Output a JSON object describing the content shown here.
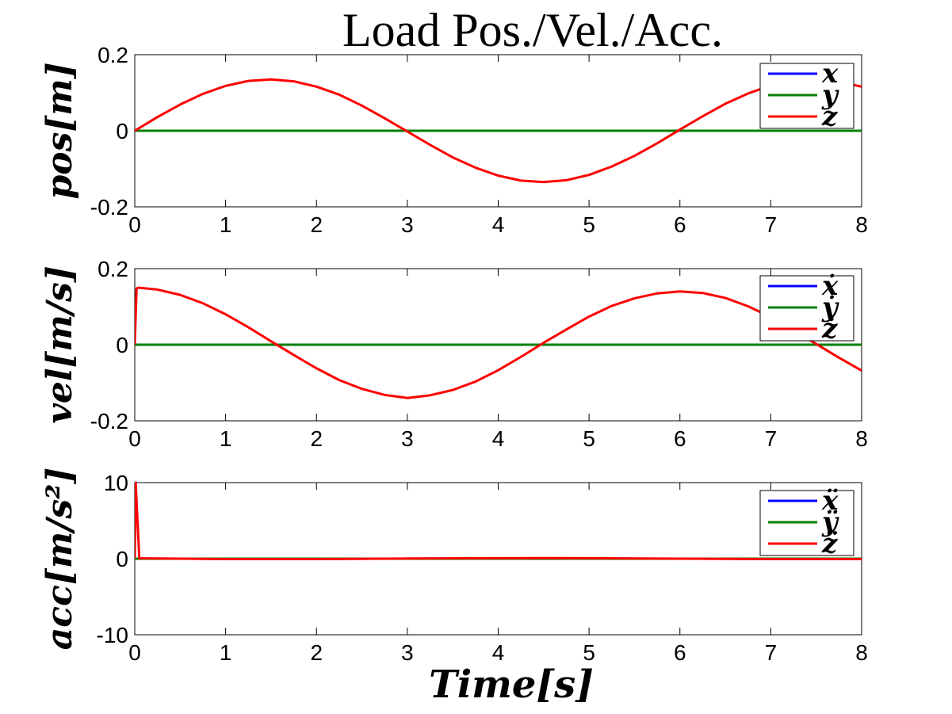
{
  "chart_data": {
    "type": "line",
    "title": "Load Pos./Vel./Acc.",
    "xlabel": "Time[s]",
    "xlim": [
      0,
      8
    ],
    "xticks": [
      "0",
      "1",
      "2",
      "3",
      "4",
      "5",
      "6",
      "7",
      "8"
    ],
    "colors": {
      "x": "#0000ff",
      "y": "#008000",
      "z": "#ff0000"
    },
    "panels": [
      {
        "ylabel": "pos[m]",
        "ylim": [
          -0.2,
          0.2
        ],
        "yticks": [
          "0.2",
          "0",
          "-0.2"
        ],
        "legend": [
          "x",
          "y",
          "z"
        ],
        "x": [
          0,
          0.25,
          0.5,
          0.75,
          1,
          1.25,
          1.5,
          1.75,
          2,
          2.25,
          2.5,
          2.75,
          3,
          3.25,
          3.5,
          3.75,
          4,
          4.25,
          4.5,
          4.75,
          5,
          5.25,
          5.5,
          5.75,
          6,
          6.25,
          6.5,
          6.75,
          7,
          7.25,
          7.5,
          7.75,
          8
        ],
        "series": [
          {
            "name": "x",
            "values": [
              0,
              0,
              0,
              0,
              0,
              0,
              0,
              0,
              0,
              0,
              0,
              0,
              0,
              0,
              0,
              0,
              0,
              0,
              0,
              0,
              0,
              0,
              0,
              0,
              0,
              0,
              0,
              0,
              0,
              0,
              0,
              0,
              0
            ]
          },
          {
            "name": "y",
            "values": [
              0,
              0,
              0,
              0,
              0,
              0,
              0,
              0,
              0,
              0,
              0,
              0,
              0,
              0,
              0,
              0,
              0,
              0,
              0,
              0,
              0,
              0,
              0,
              0,
              0,
              0,
              0,
              0,
              0,
              0,
              0,
              0,
              0
            ]
          },
          {
            "name": "z",
            "values": [
              0,
              0.036,
              0.069,
              0.097,
              0.118,
              0.131,
              0.135,
              0.13,
              0.116,
              0.095,
              0.066,
              0.033,
              -0.002,
              -0.037,
              -0.07,
              -0.097,
              -0.118,
              -0.131,
              -0.135,
              -0.13,
              -0.116,
              -0.094,
              -0.066,
              -0.033,
              0.003,
              0.038,
              0.071,
              0.098,
              0.119,
              0.132,
              0.135,
              0.128,
              0.116
            ]
          }
        ]
      },
      {
        "ylabel": "vel[m/s]",
        "ylim": [
          -0.2,
          0.2
        ],
        "yticks": [
          "0.2",
          "0",
          "-0.2"
        ],
        "legend": [
          "ẋ",
          "ẏ",
          "ż"
        ],
        "x": [
          0,
          0.02,
          0.04,
          0.25,
          0.5,
          0.75,
          1,
          1.25,
          1.5,
          1.75,
          2,
          2.25,
          2.5,
          2.75,
          3,
          3.25,
          3.5,
          3.75,
          4,
          4.25,
          4.5,
          4.75,
          5,
          5.25,
          5.5,
          5.75,
          6,
          6.25,
          6.5,
          6.75,
          7,
          7.25,
          7.5,
          7.75,
          8
        ],
        "series": [
          {
            "name": "ẋ",
            "values": [
              0,
              0,
              0,
              0,
              0,
              0,
              0,
              0,
              0,
              0,
              0,
              0,
              0,
              0,
              0,
              0,
              0,
              0,
              0,
              0,
              0,
              0,
              0,
              0,
              0,
              0,
              0,
              0,
              0,
              0,
              0,
              0,
              0,
              0,
              0
            ]
          },
          {
            "name": "ẏ",
            "values": [
              0,
              0,
              0,
              0,
              0,
              0,
              0,
              0,
              0,
              0,
              0,
              0,
              0,
              0,
              0,
              0,
              0,
              0,
              0,
              0,
              0,
              0,
              0,
              0,
              0,
              0,
              0,
              0,
              0,
              0,
              0,
              0,
              0,
              0,
              0
            ]
          },
          {
            "name": "ż",
            "values": [
              0,
              0.148,
              0.15,
              0.145,
              0.131,
              0.109,
              0.08,
              0.046,
              0.009,
              -0.027,
              -0.062,
              -0.093,
              -0.116,
              -0.132,
              -0.14,
              -0.133,
              -0.119,
              -0.097,
              -0.067,
              -0.032,
              0.005,
              0.04,
              0.074,
              0.102,
              0.122,
              0.135,
              0.14,
              0.136,
              0.123,
              0.101,
              0.073,
              0.038,
              0.002,
              -0.034,
              -0.068
            ]
          }
        ]
      },
      {
        "ylabel": "acc[m/s²]",
        "ylim": [
          -10,
          10
        ],
        "yticks": [
          "10",
          "0",
          "-10"
        ],
        "legend": [
          "ẍ",
          "ÿ",
          "z̈"
        ],
        "x": [
          0,
          0.01,
          0.05,
          1,
          2,
          3,
          4,
          4.5,
          5,
          6,
          7,
          8
        ],
        "series": [
          {
            "name": "ẍ",
            "values": [
              0,
              0,
              0,
              0,
              0,
              0,
              0,
              0,
              0,
              0,
              0,
              0
            ]
          },
          {
            "name": "ÿ",
            "values": [
              0,
              0,
              0,
              0,
              0,
              0,
              0,
              0,
              0,
              0,
              0,
              0
            ]
          },
          {
            "name": "z̈",
            "values": [
              0,
              10,
              0.05,
              -0.05,
              -0.05,
              0.02,
              0.06,
              0.08,
              0.06,
              0.0,
              -0.05,
              -0.05
            ]
          }
        ]
      }
    ]
  }
}
